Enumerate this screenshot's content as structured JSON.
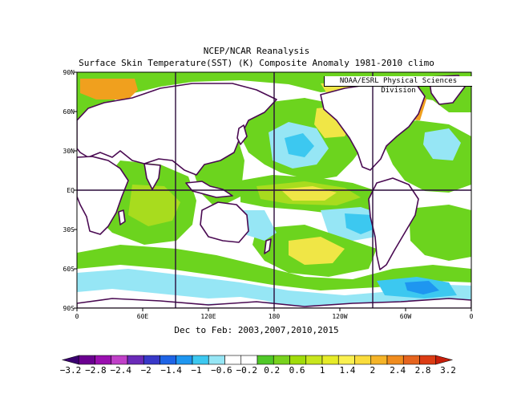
{
  "title_line1": "NCEP/NCAR Reanalysis",
  "title_line2": "Surface Skin Temperature(SST) (K) Composite Anomaly 1981-2010 climo",
  "credit": "NOAA/ESRL Physical Sciences Division",
  "period_label": "Dec to Feb: 2003,2007,2010,2015",
  "map": {
    "projection": "cylindrical-equidistant",
    "lon_range": [
      0,
      360
    ],
    "lat_range": [
      -90,
      90
    ],
    "lat_ticks": [
      {
        "lat": 90,
        "label": "90N"
      },
      {
        "lat": 60,
        "label": "60N"
      },
      {
        "lat": 30,
        "label": "30N"
      },
      {
        "lat": 0,
        "label": "EQ"
      },
      {
        "lat": -30,
        "label": "30S"
      },
      {
        "lat": -60,
        "label": "60S"
      },
      {
        "lat": -90,
        "label": "90S"
      }
    ],
    "lon_ticks": [
      {
        "lon": 0,
        "label": "0"
      },
      {
        "lon": 60,
        "label": "60E"
      },
      {
        "lon": 120,
        "label": "120E"
      },
      {
        "lon": 180,
        "label": "180"
      },
      {
        "lon": 240,
        "label": "120W"
      },
      {
        "lon": 300,
        "label": "60W"
      },
      {
        "lon": 360,
        "label": "0"
      }
    ],
    "grid_lines_lon": [
      90,
      180,
      270
    ],
    "grid_lines_lat": [
      0
    ]
  },
  "colorbar": {
    "labels": [
      "-3.2",
      "-2.8",
      "-2.4",
      "-2",
      "-1.4",
      "-1",
      "-0.6",
      "-0.2",
      "0.2",
      "0.6",
      "1",
      "1.4",
      "2",
      "2.4",
      "2.8",
      "3.2"
    ],
    "colors": [
      "#3a0070",
      "#6a0090",
      "#9a10b0",
      "#c040c8",
      "#6a2ab8",
      "#3838c8",
      "#1e64e6",
      "#1e96f0",
      "#3cc8f0",
      "#96e6f5",
      "#ffffff",
      "#ffffff",
      "#50c828",
      "#78d21e",
      "#a0dc0a",
      "#c8e61e",
      "#e6eb28",
      "#faf050",
      "#fadc3c",
      "#f5b428",
      "#f08c1e",
      "#e6641e",
      "#dc3c14",
      "#c81e0a"
    ]
  },
  "fill_colors": {
    "land": "#ffffff",
    "coast": "#4a0a52",
    "green": "#6cd41e",
    "lime": "#a8dc1e",
    "yellow": "#f0e646",
    "orange": "#f0a01e",
    "red": "#dc3c14",
    "darkred": "#b41e1e",
    "cyan": "#96e6f5",
    "lightblue": "#3cc8f0",
    "blue": "#1e96f0"
  }
}
